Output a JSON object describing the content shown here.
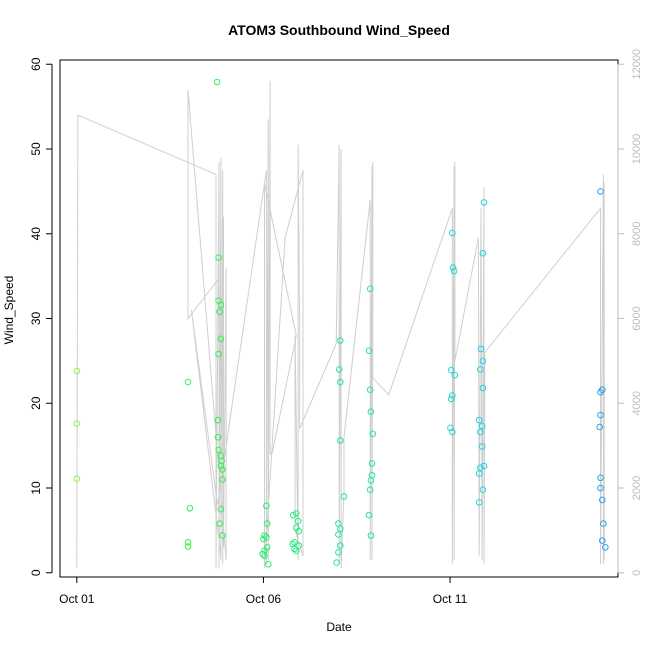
{
  "chart_data": {
    "type": "scatter",
    "title": "ATOM3 Southbound Wind_Speed",
    "xlabel": "Date",
    "ylabel": "Wind_Speed",
    "x_ticks": [
      {
        "label": "Oct 01",
        "value": 0
      },
      {
        "label": "Oct 06",
        "value": 5
      },
      {
        "label": "Oct 11",
        "value": 10
      }
    ],
    "xlim": [
      -0.45,
      14.5
    ],
    "ylim": [
      -0.5,
      60.5
    ],
    "y_ticks": [
      0,
      10,
      20,
      30,
      40,
      50,
      60
    ],
    "secondary_ylim": [
      -100,
      12100
    ],
    "secondary_y_ticks": [
      0,
      2000,
      4000,
      6000,
      8000,
      10000,
      12000
    ],
    "colors": {
      "series_line": "#cfcfcf",
      "axis": "#000000",
      "secondary_axis": "#bdbdbd",
      "point_scale": [
        "#8ef54a",
        "#3ef03e",
        "#22ee7a",
        "#1fe0b8",
        "#22d0ee",
        "#2aa0ea"
      ]
    },
    "points": [
      {
        "x": 0.0,
        "y": 23.8
      },
      {
        "x": 0.0,
        "y": 17.6
      },
      {
        "x": 0.0,
        "y": 11.1
      },
      {
        "x": 2.98,
        "y": 22.5
      },
      {
        "x": 3.03,
        "y": 7.6
      },
      {
        "x": 2.98,
        "y": 3.6
      },
      {
        "x": 2.98,
        "y": 3.1
      },
      {
        "x": 3.76,
        "y": 57.9
      },
      {
        "x": 3.8,
        "y": 37.2
      },
      {
        "x": 3.8,
        "y": 32.1
      },
      {
        "x": 3.86,
        "y": 31.6
      },
      {
        "x": 3.83,
        "y": 30.8
      },
      {
        "x": 3.86,
        "y": 27.6
      },
      {
        "x": 3.8,
        "y": 25.8
      },
      {
        "x": 3.78,
        "y": 18.0
      },
      {
        "x": 3.78,
        "y": 16.0
      },
      {
        "x": 3.8,
        "y": 14.5
      },
      {
        "x": 3.86,
        "y": 13.8
      },
      {
        "x": 3.88,
        "y": 13.2
      },
      {
        "x": 3.86,
        "y": 12.6
      },
      {
        "x": 3.9,
        "y": 12.2
      },
      {
        "x": 3.9,
        "y": 11.0
      },
      {
        "x": 3.86,
        "y": 7.5
      },
      {
        "x": 3.83,
        "y": 5.8
      },
      {
        "x": 3.9,
        "y": 4.4
      },
      {
        "x": 5.08,
        "y": 7.9
      },
      {
        "x": 5.1,
        "y": 5.8
      },
      {
        "x": 5.03,
        "y": 4.4
      },
      {
        "x": 5.0,
        "y": 4.0
      },
      {
        "x": 5.08,
        "y": 4.2
      },
      {
        "x": 5.1,
        "y": 3.0
      },
      {
        "x": 5.03,
        "y": 2.6
      },
      {
        "x": 4.98,
        "y": 2.2
      },
      {
        "x": 5.03,
        "y": 2.0
      },
      {
        "x": 5.13,
        "y": 1.0
      },
      {
        "x": 5.8,
        "y": 6.8
      },
      {
        "x": 5.88,
        "y": 7.0
      },
      {
        "x": 5.93,
        "y": 6.1
      },
      {
        "x": 5.88,
        "y": 5.3
      },
      {
        "x": 5.95,
        "y": 4.9
      },
      {
        "x": 5.83,
        "y": 3.6
      },
      {
        "x": 5.78,
        "y": 3.4
      },
      {
        "x": 5.95,
        "y": 3.2
      },
      {
        "x": 5.83,
        "y": 2.8
      },
      {
        "x": 5.88,
        "y": 2.6
      },
      {
        "x": 7.06,
        "y": 27.4
      },
      {
        "x": 7.03,
        "y": 24.0
      },
      {
        "x": 7.06,
        "y": 22.5
      },
      {
        "x": 7.06,
        "y": 15.6
      },
      {
        "x": 7.16,
        "y": 9.0
      },
      {
        "x": 7.01,
        "y": 5.8
      },
      {
        "x": 7.06,
        "y": 5.2
      },
      {
        "x": 7.01,
        "y": 4.5
      },
      {
        "x": 7.06,
        "y": 3.2
      },
      {
        "x": 7.01,
        "y": 2.4
      },
      {
        "x": 6.96,
        "y": 1.2
      },
      {
        "x": 7.86,
        "y": 33.5
      },
      {
        "x": 7.83,
        "y": 26.2
      },
      {
        "x": 7.86,
        "y": 21.6
      },
      {
        "x": 7.88,
        "y": 19.0
      },
      {
        "x": 7.93,
        "y": 16.4
      },
      {
        "x": 7.91,
        "y": 12.9
      },
      {
        "x": 7.91,
        "y": 11.5
      },
      {
        "x": 7.88,
        "y": 10.9
      },
      {
        "x": 7.86,
        "y": 9.8
      },
      {
        "x": 7.83,
        "y": 6.8
      },
      {
        "x": 7.88,
        "y": 4.4
      },
      {
        "x": 10.06,
        "y": 40.1
      },
      {
        "x": 10.08,
        "y": 36.0
      },
      {
        "x": 10.11,
        "y": 35.6
      },
      {
        "x": 10.03,
        "y": 23.9
      },
      {
        "x": 10.13,
        "y": 23.3
      },
      {
        "x": 10.06,
        "y": 20.9
      },
      {
        "x": 10.03,
        "y": 20.5
      },
      {
        "x": 10.01,
        "y": 17.1
      },
      {
        "x": 10.06,
        "y": 16.6
      },
      {
        "x": 10.91,
        "y": 43.7
      },
      {
        "x": 10.88,
        "y": 37.7
      },
      {
        "x": 10.83,
        "y": 26.4
      },
      {
        "x": 10.88,
        "y": 25.0
      },
      {
        "x": 10.81,
        "y": 24.0
      },
      {
        "x": 10.88,
        "y": 21.8
      },
      {
        "x": 10.78,
        "y": 18.0
      },
      {
        "x": 10.86,
        "y": 17.3
      },
      {
        "x": 10.81,
        "y": 16.6
      },
      {
        "x": 10.86,
        "y": 14.9
      },
      {
        "x": 10.91,
        "y": 12.6
      },
      {
        "x": 10.81,
        "y": 12.4
      },
      {
        "x": 10.78,
        "y": 11.7
      },
      {
        "x": 10.88,
        "y": 9.8
      },
      {
        "x": 10.78,
        "y": 8.3
      },
      {
        "x": 14.03,
        "y": 45.0
      },
      {
        "x": 14.08,
        "y": 21.6
      },
      {
        "x": 14.03,
        "y": 21.3
      },
      {
        "x": 14.03,
        "y": 18.6
      },
      {
        "x": 14.01,
        "y": 17.2
      },
      {
        "x": 14.03,
        "y": 11.2
      },
      {
        "x": 14.03,
        "y": 10.0
      },
      {
        "x": 14.08,
        "y": 8.6
      },
      {
        "x": 14.11,
        "y": 5.8
      },
      {
        "x": 14.08,
        "y": 3.8
      },
      {
        "x": 14.16,
        "y": 3.0
      }
    ],
    "secondary_series": [
      {
        "x": 0.0,
        "y": 100
      },
      {
        "x": 0.03,
        "y": 10800
      },
      {
        "x": 3.73,
        "y": 9400
      },
      {
        "x": 3.73,
        "y": 100
      },
      {
        "x": 3.81,
        "y": 9700
      },
      {
        "x": 3.81,
        "y": 100
      },
      {
        "x": 3.86,
        "y": 9800
      },
      {
        "x": 3.86,
        "y": 300
      },
      {
        "x": 3.91,
        "y": 9500
      },
      {
        "x": 3.91,
        "y": 200
      },
      {
        "x": 3.93,
        "y": 8400
      },
      {
        "x": 3.93,
        "y": 600
      },
      {
        "x": 4.0,
        "y": 7200
      },
      {
        "x": 4.0,
        "y": 300
      },
      {
        "x": 2.98,
        "y": 11400
      },
      {
        "x": 2.98,
        "y": 6000
      },
      {
        "x": 3.86,
        "y": 7000
      },
      {
        "x": 3.86,
        "y": 400
      },
      {
        "x": 3.07,
        "y": 6200
      },
      {
        "x": 3.77,
        "y": 1600
      },
      {
        "x": 5.08,
        "y": 9500
      },
      {
        "x": 5.08,
        "y": 200
      },
      {
        "x": 5.13,
        "y": 10700
      },
      {
        "x": 5.13,
        "y": 300
      },
      {
        "x": 5.18,
        "y": 11600
      },
      {
        "x": 5.18,
        "y": 2800
      },
      {
        "x": 5.23,
        "y": 2800
      },
      {
        "x": 5.88,
        "y": 5600
      },
      {
        "x": 5.03,
        "y": 9200
      },
      {
        "x": 5.03,
        "y": 100
      },
      {
        "x": 5.58,
        "y": 7900
      },
      {
        "x": 6.06,
        "y": 9500
      },
      {
        "x": 6.06,
        "y": 400
      },
      {
        "x": 5.85,
        "y": 1000
      },
      {
        "x": 5.85,
        "y": 5600
      },
      {
        "x": 5.93,
        "y": 300
      },
      {
        "x": 5.93,
        "y": 10100
      },
      {
        "x": 5.97,
        "y": 6000
      },
      {
        "x": 5.97,
        "y": 3400
      },
      {
        "x": 6.95,
        "y": 5400
      },
      {
        "x": 7.03,
        "y": 10100
      },
      {
        "x": 7.03,
        "y": 200
      },
      {
        "x": 7.08,
        "y": 10000
      },
      {
        "x": 7.08,
        "y": 100
      },
      {
        "x": 7.16,
        "y": 1900
      },
      {
        "x": 7.16,
        "y": 3200
      },
      {
        "x": 7.86,
        "y": 8800
      },
      {
        "x": 7.86,
        "y": 300
      },
      {
        "x": 7.91,
        "y": 9600
      },
      {
        "x": 7.91,
        "y": 300
      },
      {
        "x": 7.93,
        "y": 9700
      },
      {
        "x": 7.93,
        "y": 4600
      },
      {
        "x": 8.36,
        "y": 4200
      },
      {
        "x": 10.06,
        "y": 8600
      },
      {
        "x": 10.06,
        "y": 200
      },
      {
        "x": 10.11,
        "y": 9600
      },
      {
        "x": 10.11,
        "y": 300
      },
      {
        "x": 10.13,
        "y": 9700
      },
      {
        "x": 10.13,
        "y": 5000
      },
      {
        "x": 10.76,
        "y": 7900
      },
      {
        "x": 10.78,
        "y": 400
      },
      {
        "x": 10.83,
        "y": 8600
      },
      {
        "x": 10.86,
        "y": 300
      },
      {
        "x": 10.91,
        "y": 9100
      },
      {
        "x": 10.91,
        "y": 200
      },
      {
        "x": 10.93,
        "y": 4200
      },
      {
        "x": 10.93,
        "y": 5200
      },
      {
        "x": 14.03,
        "y": 8600
      },
      {
        "x": 14.03,
        "y": 200
      },
      {
        "x": 14.11,
        "y": 9400
      },
      {
        "x": 14.11,
        "y": 200
      },
      {
        "x": 14.13,
        "y": 9200
      },
      {
        "x": 14.13,
        "y": 300
      }
    ]
  }
}
